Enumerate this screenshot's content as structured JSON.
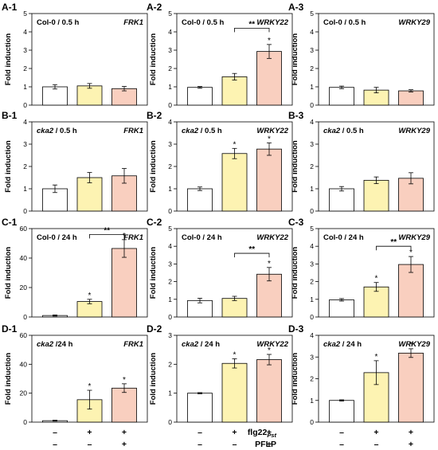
{
  "colors": {
    "white_bar": "#ffffff",
    "yellow_bar": "#fdf3b2",
    "salmon_bar": "#f9cfbf",
    "axis": "#000000",
    "bar_edge": "#000000"
  },
  "ylabel": "Fold induction",
  "footer": {
    "row1_label": "flg22",
    "row1_sub": "Pst",
    "row1_marks": [
      "–",
      "+",
      "+"
    ],
    "row2_label": "PFLP",
    "row2_marks": [
      "–",
      "–",
      "+"
    ]
  },
  "chart_data": [
    {
      "id": "A-1",
      "type": "bar",
      "condition": "Col-0 / 0.5 h",
      "gene": "FRK1",
      "condition_italic": false,
      "ylim": [
        0,
        5
      ],
      "yticks": [
        0,
        1,
        2,
        3,
        4,
        5
      ],
      "values": [
        1.0,
        1.05,
        0.9
      ],
      "errors": [
        0.12,
        0.13,
        0.12
      ],
      "stars": [
        "",
        "",
        ""
      ],
      "bracket": null
    },
    {
      "id": "A-2",
      "type": "bar",
      "condition": "Col-0 / 0.5 h",
      "gene": "WRKY22",
      "condition_italic": false,
      "ylim": [
        0,
        5
      ],
      "yticks": [
        0,
        1,
        2,
        3,
        4,
        5
      ],
      "values": [
        0.97,
        1.55,
        2.93
      ],
      "errors": [
        0.05,
        0.18,
        0.38
      ],
      "stars": [
        "",
        "",
        "*"
      ],
      "bracket": {
        "from": 1,
        "to": 2,
        "y": 4.2,
        "label": "**"
      }
    },
    {
      "id": "A-3",
      "type": "bar",
      "condition": "Col-0 / 0.5 h",
      "gene": "WRKY29",
      "condition_italic": false,
      "ylim": [
        0,
        5
      ],
      "yticks": [
        0,
        1,
        2,
        3,
        4,
        5
      ],
      "values": [
        0.97,
        0.82,
        0.78
      ],
      "errors": [
        0.07,
        0.15,
        0.06
      ],
      "stars": [
        "",
        "",
        ""
      ],
      "bracket": null
    },
    {
      "id": "B-1",
      "type": "bar",
      "condition": "cka2 / 0.5 h",
      "gene": "FRK1",
      "condition_italic": true,
      "ylim": [
        0,
        4
      ],
      "yticks": [
        0,
        1,
        2,
        3,
        4
      ],
      "values": [
        1.0,
        1.5,
        1.58
      ],
      "errors": [
        0.17,
        0.23,
        0.33
      ],
      "stars": [
        "",
        "",
        ""
      ],
      "bracket": null
    },
    {
      "id": "B-2",
      "type": "bar",
      "condition": "cka2 / 0.5 h",
      "gene": "WRKY22",
      "condition_italic": true,
      "ylim": [
        0,
        4
      ],
      "yticks": [
        0,
        1,
        2,
        3,
        4
      ],
      "values": [
        1.0,
        2.58,
        2.78
      ],
      "errors": [
        0.08,
        0.23,
        0.28
      ],
      "stars": [
        "",
        "*",
        "*"
      ],
      "bracket": null
    },
    {
      "id": "B-3",
      "type": "bar",
      "condition": "cka2 / 0.5 h",
      "gene": "WRKY29",
      "condition_italic": true,
      "ylim": [
        0,
        4
      ],
      "yticks": [
        0,
        1,
        2,
        3,
        4
      ],
      "values": [
        1.0,
        1.38,
        1.47
      ],
      "errors": [
        0.1,
        0.15,
        0.25
      ],
      "stars": [
        "",
        "",
        ""
      ],
      "bracket": null
    },
    {
      "id": "C-1",
      "type": "bar",
      "condition": "Col-0 / 24 h",
      "gene": "FRK1",
      "condition_italic": false,
      "ylim": [
        0,
        60
      ],
      "yticks": [
        0,
        20,
        40,
        60
      ],
      "values": [
        1.0,
        10.5,
        46.5
      ],
      "errors": [
        0.4,
        1.5,
        6.0
      ],
      "stars": [
        "",
        "*",
        "*"
      ],
      "bracket": {
        "from": 1,
        "to": 2,
        "y": 56,
        "label": "**"
      }
    },
    {
      "id": "C-2",
      "type": "bar",
      "condition": "Col-0 / 24 h",
      "gene": "WRKY22",
      "condition_italic": false,
      "ylim": [
        0,
        5
      ],
      "yticks": [
        0,
        1,
        2,
        3,
        4,
        5
      ],
      "values": [
        0.93,
        1.05,
        2.42
      ],
      "errors": [
        0.13,
        0.12,
        0.38
      ],
      "stars": [
        "",
        "",
        "*"
      ],
      "bracket": {
        "from": 1,
        "to": 2,
        "y": 3.6,
        "label": "**"
      }
    },
    {
      "id": "C-3",
      "type": "bar",
      "condition": "Col-0 / 24 h",
      "gene": "WRKY29",
      "condition_italic": false,
      "ylim": [
        0,
        5
      ],
      "yticks": [
        0,
        1,
        2,
        3,
        4,
        5
      ],
      "values": [
        0.97,
        1.7,
        2.97
      ],
      "errors": [
        0.07,
        0.25,
        0.45
      ],
      "stars": [
        "",
        "*",
        "*"
      ],
      "bracket": {
        "from": 1,
        "to": 2,
        "y": 4.0,
        "label": "**"
      }
    },
    {
      "id": "D-1",
      "type": "bar",
      "condition": "cka2 /24 h",
      "gene": "FRK1",
      "condition_italic": true,
      "ylim": [
        0,
        60
      ],
      "yticks": [
        0,
        20,
        40,
        60
      ],
      "values": [
        1.0,
        15.5,
        23.5
      ],
      "errors": [
        0.3,
        6.5,
        3.0
      ],
      "stars": [
        "",
        "*",
        "*"
      ],
      "bracket": null
    },
    {
      "id": "D-2",
      "type": "bar",
      "condition": "cka2 / 24 h",
      "gene": "WRKY22",
      "condition_italic": true,
      "ylim": [
        0,
        3
      ],
      "yticks": [
        0,
        1,
        2,
        3
      ],
      "values": [
        1.0,
        2.03,
        2.16
      ],
      "errors": [
        0.02,
        0.16,
        0.18
      ],
      "stars": [
        "",
        "*",
        "*"
      ],
      "bracket": null
    },
    {
      "id": "D-3",
      "type": "bar",
      "condition": "cka2 / 24 h",
      "gene": "WRKY29",
      "condition_italic": true,
      "ylim": [
        0,
        4
      ],
      "yticks": [
        0,
        1,
        2,
        3,
        4
      ],
      "values": [
        1.0,
        2.28,
        3.18
      ],
      "errors": [
        0.03,
        0.55,
        0.2
      ],
      "stars": [
        "",
        "*",
        "*"
      ],
      "bracket": null
    }
  ]
}
